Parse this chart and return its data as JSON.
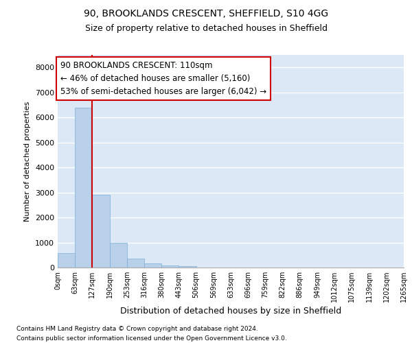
{
  "title1": "90, BROOKLANDS CRESCENT, SHEFFIELD, S10 4GG",
  "title2": "Size of property relative to detached houses in Sheffield",
  "xlabel": "Distribution of detached houses by size in Sheffield",
  "ylabel": "Number of detached properties",
  "bin_labels": [
    "0sqm",
    "63sqm",
    "127sqm",
    "190sqm",
    "253sqm",
    "316sqm",
    "380sqm",
    "443sqm",
    "506sqm",
    "569sqm",
    "633sqm",
    "696sqm",
    "759sqm",
    "822sqm",
    "886sqm",
    "949sqm",
    "1012sqm",
    "1075sqm",
    "1139sqm",
    "1202sqm",
    "1265sqm"
  ],
  "bar_values": [
    580,
    6380,
    2920,
    975,
    355,
    155,
    90,
    55,
    0,
    0,
    0,
    0,
    0,
    0,
    0,
    0,
    0,
    0,
    0,
    0
  ],
  "bar_color": "#b8d0ea",
  "bar_edge_color": "#7aaed4",
  "background_color": "#dce8f5",
  "grid_color": "#ffffff",
  "vline_x": 2.0,
  "vline_color": "#cc0000",
  "annotation_text": "90 BROOKLANDS CRESCENT: 110sqm\n← 46% of detached houses are smaller (5,160)\n53% of semi-detached houses are larger (6,042) →",
  "annotation_box_edgecolor": "#cc0000",
  "annotation_box_facecolor": "#ffffff",
  "ylim": [
    0,
    8500
  ],
  "yticks": [
    0,
    1000,
    2000,
    3000,
    4000,
    5000,
    6000,
    7000,
    8000
  ],
  "footer_line1": "Contains HM Land Registry data © Crown copyright and database right 2024.",
  "footer_line2": "Contains public sector information licensed under the Open Government Licence v3.0."
}
